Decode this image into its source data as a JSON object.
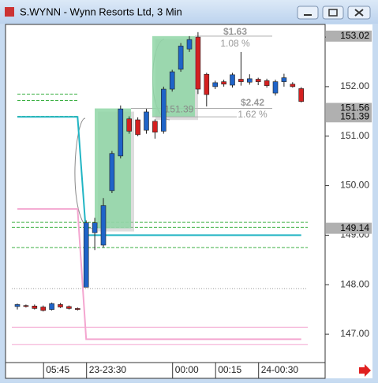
{
  "window": {
    "title": "S.WYNN - Wynn Resorts Ltd, 3 Min"
  },
  "chart_data": {
    "type": "candlestick",
    "categories": [
      null,
      null,
      null,
      "05:45",
      null,
      null,
      null,
      null,
      "23-23:30",
      null,
      null,
      null,
      null,
      null,
      null,
      null,
      null,
      null,
      "00:00",
      null,
      null,
      null,
      null,
      "00:15",
      null,
      null,
      null,
      null,
      "24-00:30",
      null,
      null,
      null,
      null,
      null
    ],
    "open": [
      147.56,
      147.58,
      147.57,
      147.55,
      147.5,
      147.6,
      147.56,
      147.52,
      147.95,
      149.05,
      148.8,
      149.9,
      150.6,
      151.35,
      151.33,
      151.12,
      151.3,
      151.1,
      151.95,
      152.35,
      152.76,
      153.0,
      152.25,
      152.0,
      152.1,
      152.03,
      152.15,
      152.09,
      152.15,
      152.12,
      151.87,
      152.1,
      152.05,
      151.96
    ],
    "high": [
      147.62,
      147.6,
      147.6,
      147.58,
      147.64,
      147.63,
      147.58,
      147.54,
      149.3,
      149.35,
      149.75,
      150.7,
      151.62,
      151.4,
      151.38,
      151.55,
      151.34,
      152.0,
      152.34,
      152.88,
      153.02,
      153.1,
      152.28,
      152.12,
      152.14,
      152.28,
      152.7,
      152.25,
      152.18,
      152.16,
      152.14,
      152.26,
      152.09,
      151.99
    ],
    "low": [
      147.5,
      147.54,
      147.5,
      147.46,
      147.48,
      147.53,
      147.5,
      147.48,
      147.95,
      148.7,
      148.75,
      149.85,
      150.55,
      151.05,
      151.0,
      151.05,
      150.95,
      151.05,
      151.9,
      152.3,
      152.7,
      151.85,
      151.6,
      151.95,
      152.0,
      151.98,
      152.02,
      152.04,
      152.03,
      151.98,
      151.82,
      152.0,
      151.98,
      151.68
    ],
    "close": [
      147.6,
      147.56,
      147.52,
      147.48,
      147.62,
      147.55,
      147.52,
      147.5,
      149.25,
      149.25,
      149.6,
      150.65,
      151.55,
      151.1,
      151.03,
      151.49,
      151.08,
      151.95,
      152.3,
      152.82,
      152.95,
      151.95,
      151.84,
      152.08,
      152.05,
      152.24,
      152.1,
      152.16,
      152.1,
      152.02,
      152.1,
      152.18,
      152.0,
      151.7
    ],
    "up_color": "#1f64c8",
    "down_color": "#d42020",
    "ylim": [
      146.46,
      153.24
    ],
    "yticks": [
      {
        "value": 153,
        "label": "153.00"
      },
      {
        "value": 152,
        "label": "152.00"
      },
      {
        "value": 151,
        "label": "151.00"
      },
      {
        "value": 150,
        "label": "150.00"
      },
      {
        "value": 149,
        "label": "149.00"
      },
      {
        "value": 148,
        "label": "148.00"
      },
      {
        "value": 147,
        "label": "147.00"
      }
    ],
    "lines": [
      {
        "color": "#3cb043",
        "dash": "4 2",
        "values": [
          151.85,
          151.85,
          151.85,
          151.85,
          151.85,
          151.85,
          151.85,
          151.85,
          null,
          null,
          null,
          null,
          null,
          null,
          null,
          null,
          null,
          null,
          null,
          null,
          null,
          null,
          null,
          null,
          null,
          null,
          null,
          null,
          null,
          null,
          null,
          null,
          null,
          null
        ]
      },
      {
        "color": "#3cb043",
        "dash": "4 2",
        "values": [
          151.72,
          151.72,
          151.72,
          151.72,
          151.72,
          151.72,
          151.72,
          151.72,
          null,
          null,
          null,
          null,
          null,
          null,
          null,
          null,
          null,
          null,
          null,
          null,
          null,
          null,
          null,
          null,
          null,
          null,
          null,
          null,
          null,
          null,
          null,
          null,
          null,
          null
        ]
      },
      {
        "color": "#3cb043",
        "dash": "4 2",
        "values": [
          151.4,
          151.4,
          151.4,
          151.4,
          151.4,
          151.4,
          151.4,
          151.4,
          null,
          null,
          null,
          null,
          null,
          null,
          null,
          null,
          null,
          null,
          null,
          null,
          null,
          null,
          null,
          null,
          null,
          null,
          null,
          null,
          null,
          null,
          null,
          null,
          null,
          null
        ]
      },
      {
        "color": "#21b5c4",
        "dash": "none",
        "values": [
          151.39,
          151.39,
          151.39,
          151.39,
          151.39,
          151.39,
          151.39,
          151.39,
          149,
          149,
          149,
          149,
          149,
          149,
          149,
          149,
          149,
          149,
          149,
          149,
          149,
          149,
          149,
          149,
          149,
          149,
          149,
          149,
          149,
          149,
          149,
          149,
          149,
          149
        ]
      },
      {
        "color": "#f4a6d0",
        "dash": "none",
        "values": [
          149.53,
          149.53,
          149.53,
          149.53,
          149.53,
          149.53,
          149.53,
          149.53,
          146.9,
          146.9,
          146.9,
          146.9,
          146.9,
          146.9,
          146.9,
          146.9,
          146.9,
          146.9,
          146.9,
          146.9,
          146.9,
          146.9,
          146.9,
          146.9,
          146.9,
          146.9,
          146.9,
          146.9,
          146.9,
          146.9,
          146.9,
          146.9,
          146.9,
          146.9
        ]
      }
    ],
    "levels": [
      {
        "value": 149.26,
        "color": "#3cb043",
        "dash": "4 2"
      },
      {
        "value": 149.16,
        "color": "#3cb043",
        "dash": "4 2"
      },
      {
        "value": 148.75,
        "color": "#3cb043",
        "dash": "4 2"
      },
      {
        "value": 147.92,
        "color": "#999999",
        "dash": "1 2"
      },
      {
        "value": 147.14,
        "color": "#f4a6d0",
        "dash": "none"
      },
      {
        "value": 146.79,
        "color": "#f4a6d0",
        "dash": "none"
      }
    ],
    "price_tags": [
      153.02,
      151.56,
      151.39,
      149.14
    ],
    "measures": [
      {
        "low": 149.14,
        "high": 151.56,
        "change": "$2.42",
        "percent": "1.62 %"
      },
      {
        "low": 151.39,
        "high": 153.02,
        "change": "$1.63",
        "percent": "1.08 %",
        "low_label": "151.39"
      }
    ]
  }
}
